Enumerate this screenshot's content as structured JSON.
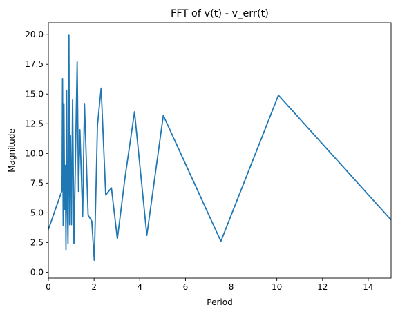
{
  "chart_data": {
    "type": "line",
    "title": "FFT of v(t) - v_err(t)",
    "xlabel": "Period",
    "ylabel": "Magnitude",
    "xlim": [
      0,
      15
    ],
    "ylim": [
      -0.5,
      21.0
    ],
    "xticks": [
      0,
      2,
      4,
      6,
      8,
      10,
      12,
      14
    ],
    "yticks": [
      0.0,
      2.5,
      5.0,
      7.5,
      10.0,
      12.5,
      15.0,
      17.5,
      20.0
    ],
    "xtick_labels": [
      "0",
      "2",
      "4",
      "6",
      "8",
      "10",
      "12",
      "14"
    ],
    "ytick_labels": [
      "0.0",
      "2.5",
      "5.0",
      "7.5",
      "10.0",
      "12.5",
      "15.0",
      "17.5",
      "20.0"
    ],
    "grid": false,
    "color": "#1f77b4",
    "series": [
      {
        "points": [
          [
            0.0,
            3.6
          ],
          [
            0.6,
            6.9
          ],
          [
            0.62,
            16.3
          ],
          [
            0.65,
            3.9
          ],
          [
            0.68,
            14.2
          ],
          [
            0.71,
            5.3
          ],
          [
            0.74,
            9.0
          ],
          [
            0.77,
            1.9
          ],
          [
            0.8,
            15.3
          ],
          [
            0.83,
            5.5
          ],
          [
            0.86,
            2.4
          ],
          [
            0.9,
            20.0
          ],
          [
            0.93,
            4.0
          ],
          [
            0.97,
            11.5
          ],
          [
            1.01,
            4.0
          ],
          [
            1.06,
            14.5
          ],
          [
            1.12,
            2.4
          ],
          [
            1.26,
            17.7
          ],
          [
            1.32,
            6.8
          ],
          [
            1.38,
            12.0
          ],
          [
            1.5,
            4.7
          ],
          [
            1.58,
            14.2
          ],
          [
            1.74,
            4.8
          ],
          [
            1.9,
            4.3
          ],
          [
            2.01,
            1.0
          ],
          [
            2.15,
            12.4
          ],
          [
            2.31,
            15.5
          ],
          [
            2.51,
            6.5
          ],
          [
            2.76,
            7.1
          ],
          [
            3.02,
            2.8
          ],
          [
            3.35,
            7.9
          ],
          [
            3.77,
            13.5
          ],
          [
            4.31,
            3.1
          ],
          [
            5.03,
            13.2
          ],
          [
            7.55,
            2.6
          ],
          [
            10.07,
            14.9
          ],
          [
            15.0,
            4.4
          ]
        ]
      }
    ]
  }
}
